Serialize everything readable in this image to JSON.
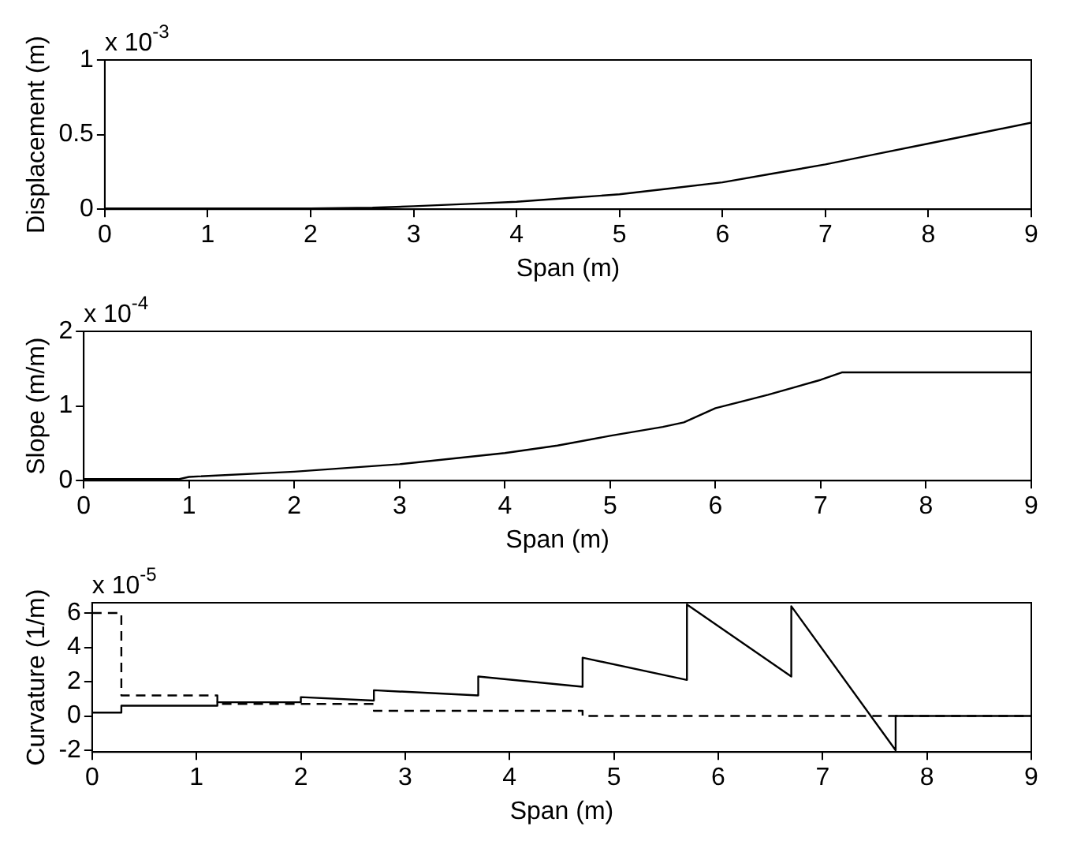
{
  "chart_data": [
    {
      "type": "line",
      "xlabel": "Span (m)",
      "ylabel": "Displacement (m)",
      "annotations": [
        "x 10$^{-3}$"
      ],
      "xlim": [
        0,
        9
      ],
      "xticks": [
        0,
        1,
        2,
        3,
        4,
        5,
        6,
        7,
        8,
        9
      ],
      "ylim": [
        0,
        1
      ],
      "yticks": [
        0,
        0.5,
        1
      ],
      "grid": false,
      "marker": "none",
      "line_style": "solid",
      "series": [
        {
          "color": "#000000",
          "x": [
            0,
            1,
            2,
            2.6,
            3,
            3.5,
            4,
            4.5,
            5,
            5.5,
            6,
            6.5,
            7,
            7.5,
            8,
            8.5,
            9
          ],
          "values": [
            0.005,
            0.005,
            0.005,
            0.01,
            0.02,
            0.035,
            0.05,
            0.075,
            0.1,
            0.14,
            0.18,
            0.24,
            0.3,
            0.37,
            0.44,
            0.51,
            0.58
          ]
        }
      ]
    },
    {
      "type": "line",
      "xlabel": "Span (m)",
      "ylabel": "Slope (m/m)",
      "annotations": [
        "x 10$^{-4}$"
      ],
      "xlim": [
        0,
        9
      ],
      "xticks": [
        0,
        1,
        2,
        3,
        4,
        5,
        6,
        7,
        8,
        9
      ],
      "ylim": [
        0,
        2
      ],
      "yticks": [
        0,
        1,
        2
      ],
      "grid": false,
      "marker": "none",
      "line_style": "solid",
      "series": [
        {
          "color": "#000000",
          "x": [
            0,
            0.9,
            1,
            2,
            3,
            4,
            4.5,
            5,
            5.5,
            5.7,
            6,
            6.5,
            7,
            7.2,
            9
          ],
          "values": [
            0.02,
            0.02,
            0.05,
            0.12,
            0.22,
            0.37,
            0.47,
            0.6,
            0.72,
            0.78,
            0.97,
            1.15,
            1.35,
            1.45,
            1.45
          ]
        }
      ]
    },
    {
      "type": "line",
      "xlabel": "Span (m)",
      "ylabel": "Curvature (1/m)",
      "annotations": [
        "x 10$^{-5}$"
      ],
      "xlim": [
        0,
        9
      ],
      "xticks": [
        0,
        1,
        2,
        3,
        4,
        5,
        6,
        7,
        8,
        9
      ],
      "ylim": [
        -2.1,
        6.6
      ],
      "yticks": [
        -2,
        0,
        2,
        4,
        6
      ],
      "grid": false,
      "marker": "none",
      "series": [
        {
          "color": "#000000",
          "line_style": "solid",
          "x": [
            0,
            0.28,
            0.28,
            1.2,
            1.2,
            2.0,
            2.0,
            2.7,
            2.7,
            3.7,
            3.7,
            4.7,
            4.7,
            5.7,
            5.7,
            6.7,
            6.7,
            7.7,
            7.7,
            9
          ],
          "values": [
            0.2,
            0.2,
            0.6,
            0.6,
            0.8,
            0.8,
            1.1,
            0.9,
            1.5,
            1.2,
            2.3,
            1.7,
            3.4,
            2.1,
            6.5,
            2.3,
            6.4,
            -2.0,
            0,
            0
          ]
        },
        {
          "color": "#000000",
          "line_style": "dashed",
          "x": [
            0,
            0.28,
            0.28,
            1.2,
            1.2,
            2.7,
            2.7,
            4.7,
            4.7,
            9
          ],
          "values": [
            6,
            6,
            1.2,
            1.2,
            0.7,
            0.7,
            0.3,
            0.3,
            0,
            0
          ]
        }
      ]
    }
  ]
}
